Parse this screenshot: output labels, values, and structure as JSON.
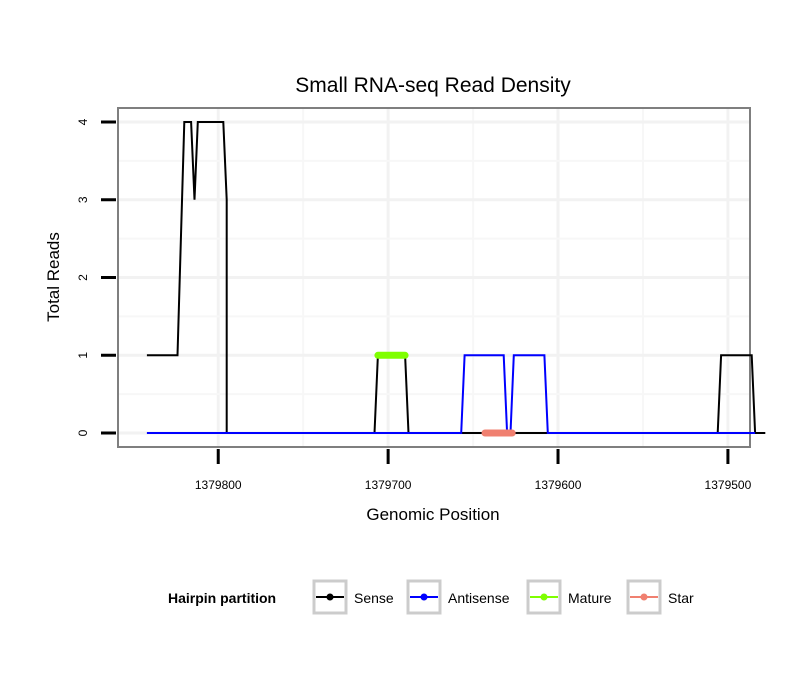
{
  "chart_data": {
    "type": "line",
    "title": "Small RNA-seq Read Density",
    "xlabel": "Genomic Position",
    "ylabel": "Total Reads",
    "x_reversed": true,
    "xlim": [
      1379859,
      1379487
    ],
    "ylim": [
      -0.18,
      4.18
    ],
    "x_ticks": [
      1379800,
      1379700,
      1379600,
      1379500
    ],
    "x_tick_labels": [
      "1379800",
      "1379700",
      "1379600",
      "1379500"
    ],
    "y_ticks": [
      0,
      1,
      2,
      3,
      4
    ],
    "y_tick_labels": [
      "0",
      "1",
      "2",
      "3",
      "4"
    ],
    "grid": true,
    "legend": {
      "title": "Hairpin partition",
      "position": "bottom",
      "entries": [
        "Sense",
        "Antisense",
        "Mature",
        "Star"
      ]
    },
    "series": [
      {
        "name": "Sense",
        "color": "#000000",
        "x": [
          1379842,
          1379824,
          1379820,
          1379816,
          1379814,
          1379812,
          1379797,
          1379795,
          1379795,
          1379708,
          1379706,
          1379690,
          1379688,
          1379506,
          1379504,
          1379486,
          1379484,
          1379478
        ],
        "y": [
          1,
          1,
          4,
          4,
          3,
          4,
          4,
          3,
          0,
          0,
          1,
          1,
          0,
          0,
          1,
          1,
          0,
          0
        ]
      },
      {
        "name": "Antisense",
        "color": "#0000ff",
        "x": [
          1379842,
          1379657,
          1379655,
          1379632,
          1379630,
          1379628,
          1379626,
          1379608,
          1379606,
          1379484
        ],
        "y": [
          0,
          0,
          1,
          1,
          0,
          0,
          1,
          1,
          0,
          0
        ]
      },
      {
        "name": "Mature",
        "color": "#7fff00",
        "x": [
          1379706,
          1379690
        ],
        "y": [
          1,
          1
        ]
      },
      {
        "name": "Star",
        "color": "#f08070",
        "x": [
          1379643,
          1379627
        ],
        "y": [
          0,
          0
        ]
      }
    ]
  }
}
